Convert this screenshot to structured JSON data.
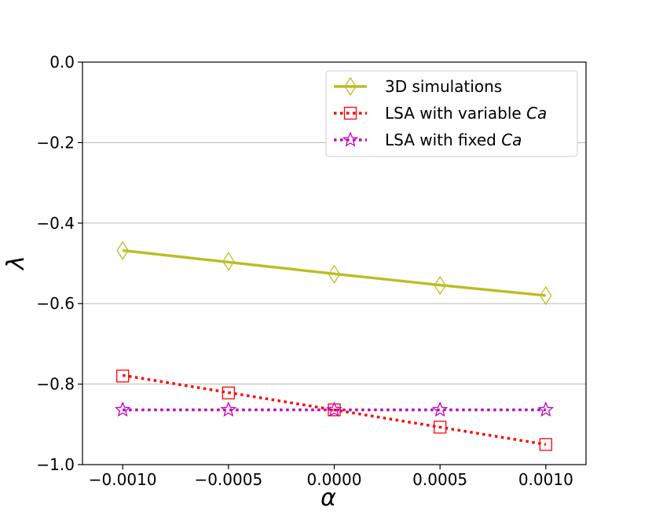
{
  "chart_data": {
    "type": "line",
    "title": "",
    "xlabel": "α",
    "ylabel": "λ",
    "x": [
      -0.001,
      -0.0005,
      0.0,
      0.0005,
      0.001
    ],
    "xlim": [
      -0.00119,
      0.00119
    ],
    "ylim": [
      -1.0,
      0.0
    ],
    "xticks": [
      -0.001,
      -0.0005,
      0.0,
      0.0005,
      0.001
    ],
    "xtick_labels": [
      "−0.0010",
      "−0.0005",
      "0.0000",
      "0.0005",
      "0.0010"
    ],
    "yticks": [
      -1.0,
      -0.8,
      -0.6,
      -0.4,
      -0.2,
      0.0
    ],
    "ytick_labels": [
      "−1.0",
      "−0.8",
      "−0.6",
      "−0.4",
      "−0.2",
      "0.0"
    ],
    "grid": "horizontal",
    "legend_position": "top-right",
    "series": [
      {
        "name": "3D simulations",
        "label_main": "3D simulations",
        "label_italic": "",
        "color": "#bcbd22",
        "linestyle": "solid",
        "marker": "diamond",
        "values": [
          -0.468,
          -0.495,
          -0.527,
          -0.555,
          -0.58
        ],
        "fit": [
          -0.468,
          -0.497,
          -0.526,
          -0.554,
          -0.58
        ]
      },
      {
        "name": "LSA with variable Ca",
        "label_main": "LSA with variable ",
        "label_italic": "Ca",
        "color": "#ff0000",
        "linestyle": "dotted",
        "marker": "square",
        "values": [
          -0.78,
          -0.822,
          -0.864,
          -0.907,
          -0.95
        ],
        "fit": [
          -0.778,
          -0.821,
          -0.864,
          -0.907,
          -0.95
        ]
      },
      {
        "name": "LSA with fixed Ca",
        "label_main": "LSA with fixed ",
        "label_italic": "Ca",
        "color": "#bf00bf",
        "linestyle": "dotted",
        "marker": "star",
        "values": [
          -0.864,
          -0.864,
          -0.864,
          -0.864,
          -0.864
        ],
        "fit": [
          -0.864,
          -0.864,
          -0.864,
          -0.864,
          -0.864
        ]
      }
    ]
  }
}
